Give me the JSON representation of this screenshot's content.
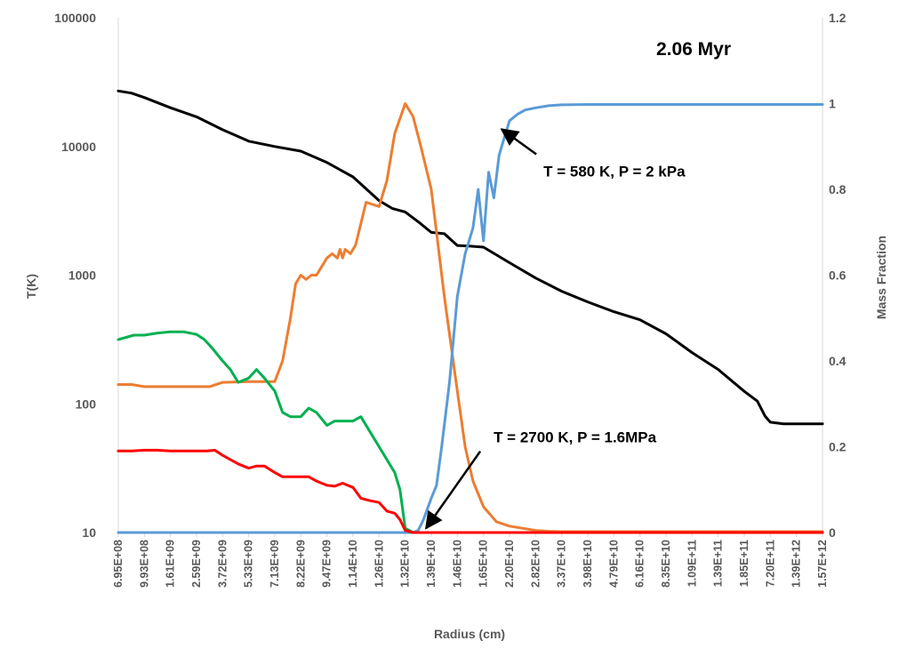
{
  "chart_data": {
    "type": "line",
    "title": "2.06 Myr",
    "xlabel": "Radius (cm)",
    "ylabel_left": "T(K)",
    "ylabel_right": "Mass Fraction",
    "y_left_scale": "log",
    "y_left_range": [
      10,
      100000
    ],
    "y_left_ticks": [
      "10",
      "100",
      "1000",
      "10000",
      "100000"
    ],
    "y_right_range": [
      0,
      1.2
    ],
    "y_right_ticks": [
      "0",
      "0.2",
      "0.4",
      "0.6",
      "0.8",
      "1",
      "1.2"
    ],
    "grid": false,
    "x_tick_labels": [
      "6.95E+08",
      "9.93E+08",
      "1.61E+09",
      "2.59E+09",
      "3.72E+09",
      "5.33E+09",
      "7.13E+09",
      "8.22E+09",
      "9.47E+09",
      "1.14E+10",
      "1.26E+10",
      "1.32E+10",
      "1.39E+10",
      "1.46E+10",
      "1.65E+10",
      "2.20E+10",
      "2.82E+10",
      "3.37E+10",
      "3.98E+10",
      "4.79E+10",
      "6.16E+10",
      "8.35E+10",
      "1.09E+11",
      "1.39E+11",
      "1.85E+11",
      "7.20E+11",
      "1.39E+12",
      "1.57E+12"
    ],
    "x_index_range": [
      0,
      27
    ],
    "series": [
      {
        "color": "#000000",
        "axis": "left",
        "x": [
          0,
          0.5,
          1,
          2,
          3,
          4,
          5,
          6,
          7,
          8,
          9,
          10,
          10.5,
          11,
          11.5,
          12,
          12.5,
          13,
          13.5,
          14,
          15,
          16,
          17,
          18,
          19,
          20,
          21,
          22,
          23,
          24,
          24.5,
          24.8,
          25,
          25.5,
          26,
          27
        ],
        "y": [
          27000,
          26000,
          24000,
          20000,
          17000,
          13500,
          11000,
          10000,
          9200,
          7500,
          5800,
          3800,
          3300,
          3100,
          2600,
          2150,
          2100,
          1700,
          1680,
          1650,
          1250,
          950,
          750,
          620,
          520,
          450,
          350,
          250,
          185,
          125,
          105,
          80,
          72,
          70,
          70,
          70
        ]
      },
      {
        "color": "#ED7D31",
        "axis": "right",
        "x": [
          0,
          0.5,
          1,
          2,
          3,
          3.5,
          4,
          5,
          5.2,
          6,
          6.3,
          6.6,
          6.8,
          7,
          7.2,
          7.4,
          7.6,
          8,
          8.2,
          8.4,
          8.5,
          8.6,
          8.7,
          8.9,
          9.1,
          9.5,
          10,
          10.3,
          10.6,
          11,
          11.3,
          11.6,
          12,
          12.5,
          13,
          13.3,
          13.6,
          14,
          14.5,
          15,
          15.5,
          16,
          16.5,
          17,
          27
        ],
        "y": [
          0.345,
          0.345,
          0.34,
          0.34,
          0.34,
          0.34,
          0.35,
          0.352,
          0.352,
          0.352,
          0.4,
          0.5,
          0.58,
          0.6,
          0.59,
          0.6,
          0.6,
          0.64,
          0.65,
          0.64,
          0.66,
          0.64,
          0.66,
          0.65,
          0.67,
          0.77,
          0.76,
          0.82,
          0.93,
          1.0,
          0.97,
          0.9,
          0.8,
          0.55,
          0.33,
          0.2,
          0.12,
          0.06,
          0.025,
          0.015,
          0.01,
          0.005,
          0.003,
          0.002,
          0.002
        ]
      },
      {
        "color": "#5B9BD5",
        "axis": "right",
        "x": [
          0,
          11,
          11.3,
          11.5,
          11.7,
          12,
          12.2,
          12.4,
          12.7,
          13,
          13.3,
          13.6,
          13.8,
          14,
          14.2,
          14.4,
          14.6,
          14.8,
          15,
          15.3,
          15.6,
          16,
          16.5,
          17,
          18,
          19,
          20,
          21,
          22,
          23,
          24,
          25,
          26,
          27
        ],
        "y": [
          0,
          0,
          0,
          0.005,
          0.03,
          0.08,
          0.11,
          0.2,
          0.35,
          0.55,
          0.65,
          0.71,
          0.8,
          0.68,
          0.84,
          0.78,
          0.88,
          0.92,
          0.96,
          0.975,
          0.985,
          0.99,
          0.995,
          0.997,
          0.998,
          0.998,
          0.998,
          0.998,
          0.998,
          0.998,
          0.998,
          0.998,
          0.998,
          0.998
        ]
      },
      {
        "color": "#00B050",
        "axis": "right",
        "x": [
          0,
          0.3,
          0.6,
          1,
          1.5,
          2,
          2.5,
          3,
          3.3,
          3.6,
          4,
          4.3,
          4.6,
          5,
          5.3,
          5.6,
          6,
          6.3,
          6.6,
          7,
          7.3,
          7.6,
          8,
          8.3,
          8.6,
          9,
          9.3,
          9.6,
          10,
          10.3,
          10.6,
          10.8,
          11,
          11.3,
          27
        ],
        "y": [
          0.45,
          0.455,
          0.46,
          0.46,
          0.465,
          0.468,
          0.468,
          0.462,
          0.45,
          0.43,
          0.4,
          0.38,
          0.35,
          0.36,
          0.38,
          0.36,
          0.33,
          0.28,
          0.27,
          0.27,
          0.29,
          0.28,
          0.25,
          0.26,
          0.26,
          0.26,
          0.27,
          0.24,
          0.2,
          0.17,
          0.14,
          0.1,
          0.01,
          0,
          0
        ]
      },
      {
        "color": "#FF0000",
        "axis": "right",
        "x": [
          0,
          0.5,
          1,
          1.5,
          2,
          2.5,
          3,
          3.4,
          3.7,
          4,
          4.3,
          4.6,
          5,
          5.3,
          5.6,
          6,
          6.3,
          6.6,
          7,
          7.3,
          7.6,
          8,
          8.3,
          8.6,
          9,
          9.3,
          9.6,
          10,
          10.3,
          10.6,
          10.8,
          11,
          11.3,
          27
        ],
        "y": [
          0.19,
          0.19,
          0.192,
          0.192,
          0.19,
          0.19,
          0.19,
          0.19,
          0.192,
          0.18,
          0.17,
          0.16,
          0.15,
          0.155,
          0.155,
          0.14,
          0.13,
          0.13,
          0.13,
          0.13,
          0.12,
          0.11,
          0.108,
          0.115,
          0.105,
          0.08,
          0.075,
          0.07,
          0.05,
          0.045,
          0.03,
          0.005,
          0,
          0
        ]
      }
    ],
    "annotations": [
      {
        "text": "T = 580 K, P = 2 kPa",
        "target_x": 14.7,
        "target_y": 0.94,
        "text_x": 16.3,
        "text_y": 0.83
      },
      {
        "text": "T = 2700 K, P = 1.6MPa",
        "target_x": 11.8,
        "target_y": 0.01,
        "text_x": 14.9,
        "text_y": 0.21
      }
    ]
  }
}
